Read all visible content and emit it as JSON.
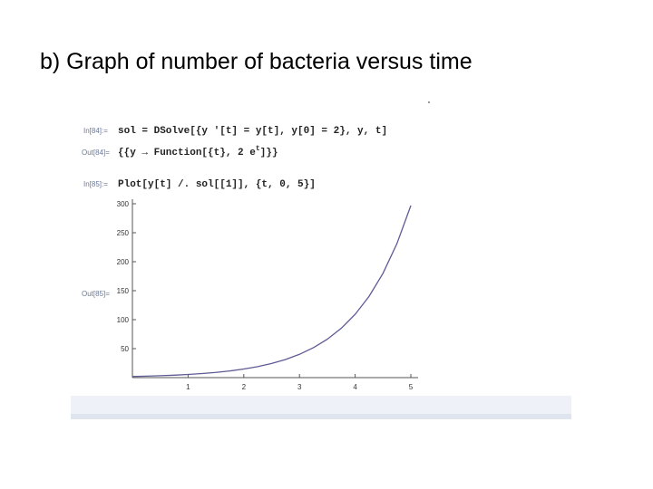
{
  "header": {
    "title": "b) Graph of number of bacteria versus time"
  },
  "cells": [
    {
      "label": "In[84]:=",
      "code": "sol = DSolve[{y '[t] = y[t], y[0] = 2}, y, t]"
    },
    {
      "label": "Out[84]=",
      "code": [
        "{{y → Function[{t}, 2 e",
        "t",
        "]}}"
      ]
    },
    {
      "label": "In[85]:=",
      "code": "Plot[y[t] /. sol[[1]], {t, 0, 5}]"
    },
    {
      "label": "Out[85]="
    }
  ],
  "plot": {
    "type": "line",
    "color": "#5e5a94",
    "x": [
      0,
      0.25,
      0.5,
      0.75,
      1,
      1.25,
      1.5,
      1.75,
      2,
      2.25,
      2.5,
      2.75,
      3,
      3.25,
      3.5,
      3.75,
      4,
      4.25,
      4.5,
      4.75,
      5
    ],
    "values": [
      2,
      2.57,
      3.3,
      4.23,
      5.44,
      6.98,
      8.96,
      11.51,
      14.78,
      18.98,
      24.36,
      31.28,
      40.17,
      51.58,
      66.23,
      85.04,
      109.2,
      140.22,
      180.03,
      231.17,
      296.83
    ],
    "xlim": [
      0,
      5
    ],
    "ylim": [
      0,
      300
    ],
    "xticks": [
      1,
      2,
      3,
      4,
      5
    ],
    "yticks": [
      50,
      100,
      150,
      200,
      250,
      300
    ]
  }
}
